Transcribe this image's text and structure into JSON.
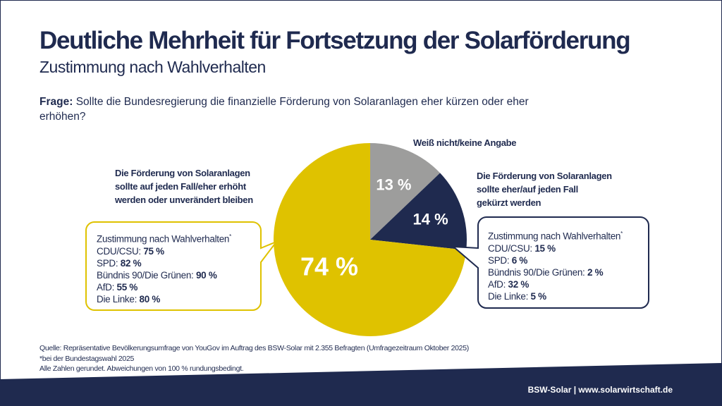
{
  "header": {
    "title": "Deutliche Mehrheit für Fortsetzung der Solarförderung",
    "subtitle": "Zustimmung nach Wahlverhalten"
  },
  "question": {
    "label": "Frage:",
    "text": "Sollte die Bundesregierung die finanzielle Förderung von Solaranlagen eher kürzen oder eher erhöhen?"
  },
  "chart_data": {
    "type": "pie",
    "start": "top",
    "direction": "clockwise",
    "slices": [
      {
        "label": "Weiß nicht/keine Angabe",
        "value": 13,
        "display": "13 %",
        "color": "#9d9d9c"
      },
      {
        "label": "Die Förderung von Solaranlagen sollte eher/auf jeden Fall gekürzt werden",
        "value": 14,
        "display": "14 %",
        "color": "#1f2a4f"
      },
      {
        "label": "Die Förderung von Solaranlagen sollte auf jeden Fall/eher erhöht werden oder unverändert bleiben",
        "value": 74,
        "display": "74 %",
        "color": "#dfc200"
      }
    ]
  },
  "labels": {
    "unknown": "Weiß nicht/keine Angabe",
    "cut": [
      "Die Förderung von Solaranlagen",
      "sollte eher/auf jeden Fall",
      "gekürzt werden"
    ],
    "raise": [
      "Die Förderung von Solaranlagen",
      "sollte auf jeden Fall/eher erhöht",
      "werden oder unverändert bleiben"
    ]
  },
  "callouts": {
    "raise": {
      "heading": "Zustimmung nach Wahlverhalten",
      "marker": "*",
      "rows": [
        {
          "party": "CDU/CSU:",
          "value": "75 %"
        },
        {
          "party": "SPD:",
          "value": "82 %"
        },
        {
          "party": "Bündnis 90/Die Grünen:",
          "value": "90 %"
        },
        {
          "party": "AfD:",
          "value": "55 %"
        },
        {
          "party": "Die Linke:",
          "value": "80 %"
        }
      ]
    },
    "cut": {
      "heading": "Zustimmung nach Wahlverhalten",
      "marker": "*",
      "rows": [
        {
          "party": "CDU/CSU:",
          "value": "15 %"
        },
        {
          "party": "SPD:",
          "value": "6 %"
        },
        {
          "party": "Bündnis 90/Die Grünen:",
          "value": "2 %"
        },
        {
          "party": "AfD:",
          "value": "32 %"
        },
        {
          "party": "Die Linke:",
          "value": "5 %"
        }
      ]
    }
  },
  "source": [
    "Quelle: Repräsentative Bevölkerungsumfrage von YouGov im Auftrag des BSW-Solar mit 2.355 Befragten (Umfragezeitraum Oktober 2025)",
    "*bei der Bundestagswahl 2025",
    "Alle Zahlen gerundet. Abweichungen von 100 % rundungsbedingt."
  ],
  "footer": "BSW-Solar | www.solarwirtschaft.de",
  "colors": {
    "navy": "#1f2a4f",
    "yellow": "#dfc200",
    "gray": "#9d9d9c"
  }
}
